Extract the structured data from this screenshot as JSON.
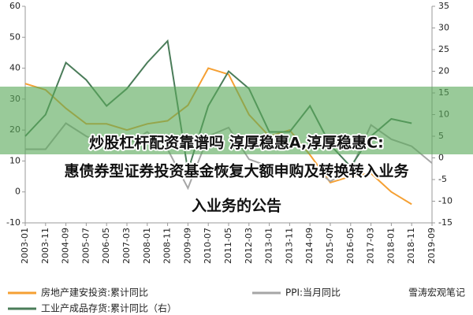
{
  "chart_data": {
    "type": "line",
    "categories": [
      "2003-01",
      "2003-11",
      "2004-09",
      "2005-07",
      "2006-05",
      "2007-03",
      "2008-01",
      "2008-11",
      "2009-09",
      "2010-07",
      "2011-05",
      "2012-03",
      "2013-01",
      "2013-11",
      "2014-09",
      "2015-07",
      "2016-05",
      "2017-03",
      "2018-01",
      "2018-11",
      "2019-09"
    ],
    "series": [
      {
        "name": "房地产建安投资:累计同比",
        "color": "#f5a033",
        "values": [
          35,
          33,
          27,
          22,
          22,
          20,
          22,
          23,
          28,
          40,
          38,
          25,
          18,
          20,
          12,
          3,
          5,
          6,
          0,
          -4,
          null
        ]
      },
      {
        "name": "PPI:当月同比",
        "color": "#a6a6a6",
        "axis": "y2",
        "values": [
          2,
          2,
          8,
          5,
          3,
          3,
          6,
          2,
          -7,
          5,
          7,
          -0.3,
          -2,
          -1.4,
          -1.8,
          -5.4,
          -2.8,
          7.6,
          4.3,
          2.7,
          -1.2
        ]
      },
      {
        "name": "工业产成品存货:累计同比（右）",
        "color": "#4a7c59",
        "axis": "y2",
        "values": [
          5,
          10,
          22,
          18,
          12,
          16,
          22,
          27,
          -3,
          12,
          20,
          16,
          6,
          6,
          12,
          3,
          -2,
          5,
          9,
          8,
          null
        ]
      }
    ],
    "ylim": [
      -10,
      60
    ],
    "yticks": [
      -10,
      0,
      10,
      20,
      30,
      40,
      50,
      60
    ],
    "y2lim": [
      -15,
      35
    ],
    "y2ticks": [
      -15,
      -10,
      -5,
      0,
      5,
      10,
      15,
      20,
      25,
      30,
      35
    ],
    "watermark": "雪涛宏观笔记"
  },
  "overlay": {
    "lines": [
      "炒股杠杆配资靠谱吗 淳厚稳惠A,淳厚稳惠C:",
      "惠债券型证券投资基金恢复大额申购及转换转入业务",
      "入业务的公告"
    ]
  }
}
